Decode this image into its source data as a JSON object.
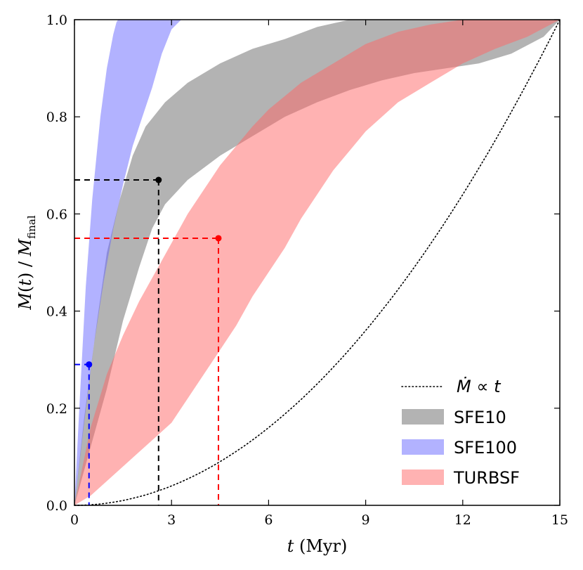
{
  "chart_data": {
    "type": "area",
    "xlabel": "t (Myr)",
    "ylabel": "M(t) / M_final",
    "xlim": [
      0,
      15
    ],
    "ylim": [
      0,
      1
    ],
    "xticks": [
      "0",
      "3",
      "6",
      "9",
      "12",
      "15"
    ],
    "xtick_values": [
      0,
      3,
      6,
      9,
      12,
      15
    ],
    "yticks": [
      "0.0",
      "0.2",
      "0.4",
      "0.6",
      "0.8",
      "1.0"
    ],
    "ytick_values": [
      0,
      0.2,
      0.4,
      0.6,
      0.8,
      1.0
    ],
    "grid": false,
    "legend_position": "bottom-right",
    "series": [
      {
        "name": "SFE10",
        "color": "#808080",
        "opacity": 0.6,
        "upper": [
          [
            0,
            0
          ],
          [
            0.3,
            0.18
          ],
          [
            0.7,
            0.38
          ],
          [
            1.0,
            0.52
          ],
          [
            1.4,
            0.63
          ],
          [
            1.8,
            0.72
          ],
          [
            2.2,
            0.78
          ],
          [
            2.8,
            0.83
          ],
          [
            3.5,
            0.87
          ],
          [
            4.5,
            0.91
          ],
          [
            5.5,
            0.94
          ],
          [
            6.5,
            0.96
          ],
          [
            7.5,
            0.985
          ],
          [
            8.5,
            1.0
          ],
          [
            15,
            1.0
          ]
        ],
        "lower": [
          [
            0,
            0
          ],
          [
            0.5,
            0.12
          ],
          [
            1.0,
            0.24
          ],
          [
            1.5,
            0.38
          ],
          [
            2.0,
            0.49
          ],
          [
            2.4,
            0.57
          ],
          [
            2.8,
            0.62
          ],
          [
            3.5,
            0.67
          ],
          [
            4.5,
            0.72
          ],
          [
            5.5,
            0.76
          ],
          [
            6.5,
            0.8
          ],
          [
            7.5,
            0.83
          ],
          [
            8.5,
            0.855
          ],
          [
            9.5,
            0.875
          ],
          [
            10.5,
            0.89
          ],
          [
            11.5,
            0.9
          ],
          [
            12.5,
            0.91
          ],
          [
            13.5,
            0.93
          ],
          [
            14.5,
            0.965
          ],
          [
            15,
            1.0
          ]
        ]
      },
      {
        "name": "SFE100",
        "color": "#6666ff",
        "opacity": 0.5,
        "upper": [
          [
            0,
            0
          ],
          [
            0.15,
            0.2
          ],
          [
            0.35,
            0.45
          ],
          [
            0.55,
            0.63
          ],
          [
            0.8,
            0.8
          ],
          [
            1.0,
            0.9
          ],
          [
            1.2,
            0.97
          ],
          [
            1.3,
            0.995
          ],
          [
            1.35,
            1.0
          ],
          [
            3.3,
            1.0
          ]
        ],
        "lower": [
          [
            0,
            0
          ],
          [
            0.3,
            0.17
          ],
          [
            0.6,
            0.33
          ],
          [
            0.9,
            0.46
          ],
          [
            1.2,
            0.57
          ],
          [
            1.5,
            0.66
          ],
          [
            1.8,
            0.74
          ],
          [
            2.1,
            0.8
          ],
          [
            2.4,
            0.86
          ],
          [
            2.7,
            0.93
          ],
          [
            3.0,
            0.98
          ],
          [
            3.3,
            1.0
          ]
        ]
      },
      {
        "name": "TURBSF",
        "color": "#ff6666",
        "opacity": 0.5,
        "upper": [
          [
            0,
            0
          ],
          [
            0.5,
            0.16
          ],
          [
            1.0,
            0.27
          ],
          [
            1.5,
            0.35
          ],
          [
            2.0,
            0.42
          ],
          [
            2.5,
            0.48
          ],
          [
            3.0,
            0.54
          ],
          [
            3.5,
            0.6
          ],
          [
            4.0,
            0.65
          ],
          [
            4.5,
            0.7
          ],
          [
            5.0,
            0.74
          ],
          [
            5.5,
            0.78
          ],
          [
            6.0,
            0.815
          ],
          [
            7.0,
            0.87
          ],
          [
            8.0,
            0.91
          ],
          [
            9.0,
            0.95
          ],
          [
            10.0,
            0.975
          ],
          [
            11.0,
            0.99
          ],
          [
            12.0,
            1.0
          ],
          [
            15,
            1.0
          ]
        ],
        "lower": [
          [
            0,
            0
          ],
          [
            0.5,
            0.02
          ],
          [
            1.0,
            0.05
          ],
          [
            1.5,
            0.08
          ],
          [
            2.0,
            0.11
          ],
          [
            2.5,
            0.14
          ],
          [
            3.0,
            0.17
          ],
          [
            3.5,
            0.22
          ],
          [
            4.0,
            0.27
          ],
          [
            4.5,
            0.32
          ],
          [
            5.0,
            0.37
          ],
          [
            5.5,
            0.43
          ],
          [
            6.0,
            0.48
          ],
          [
            6.5,
            0.53
          ],
          [
            7.0,
            0.59
          ],
          [
            7.5,
            0.64
          ],
          [
            8.0,
            0.69
          ],
          [
            8.5,
            0.73
          ],
          [
            9.0,
            0.77
          ],
          [
            9.5,
            0.8
          ],
          [
            10.0,
            0.83
          ],
          [
            11.0,
            0.87
          ],
          [
            12.0,
            0.91
          ],
          [
            13.0,
            0.94
          ],
          [
            14.0,
            0.965
          ],
          [
            15,
            1.0
          ]
        ]
      }
    ],
    "reference_line": {
      "name": "Ṁ ∝ t",
      "style": "dotted",
      "color": "#000000",
      "formula": "(t/15)^2"
    },
    "markers": [
      {
        "series": "SFE100",
        "color": "#0000ff",
        "x": 0.45,
        "y": 0.29
      },
      {
        "series": "SFE10",
        "color": "#000000",
        "x": 2.6,
        "y": 0.67
      },
      {
        "series": "TURBSF",
        "color": "#ff0000",
        "x": 4.45,
        "y": 0.55
      }
    ],
    "legend": [
      {
        "label": "Ṁ ∝ t",
        "kind": "line",
        "color": "#000000"
      },
      {
        "label": "SFE10",
        "kind": "patch",
        "color": "#808080",
        "opacity": 0.6
      },
      {
        "label": "SFE100",
        "kind": "patch",
        "color": "#6666ff",
        "opacity": 0.5
      },
      {
        "label": "TURBSF",
        "kind": "patch",
        "color": "#ff6666",
        "opacity": 0.5
      }
    ]
  }
}
